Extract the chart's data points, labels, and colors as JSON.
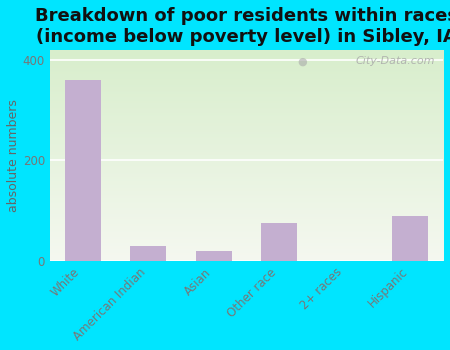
{
  "categories": [
    "White",
    "American Indian",
    "Asian",
    "Other race",
    "2+ races",
    "Hispanic"
  ],
  "values": [
    360,
    30,
    20,
    75,
    0,
    90
  ],
  "bar_color": "#c4afd0",
  "title": "Breakdown of poor residents within races\n(income below poverty level) in Sibley, IA",
  "ylabel": "absolute numbers",
  "ylim": [
    0,
    420
  ],
  "yticks": [
    0,
    200,
    400
  ],
  "background_color": "#00e5ff",
  "plot_bg_top": "#d8eecc",
  "plot_bg_bottom": "#f5f8f0",
  "title_fontsize": 13,
  "axis_label_fontsize": 9,
  "tick_fontsize": 8.5,
  "watermark": "City-Data.com"
}
